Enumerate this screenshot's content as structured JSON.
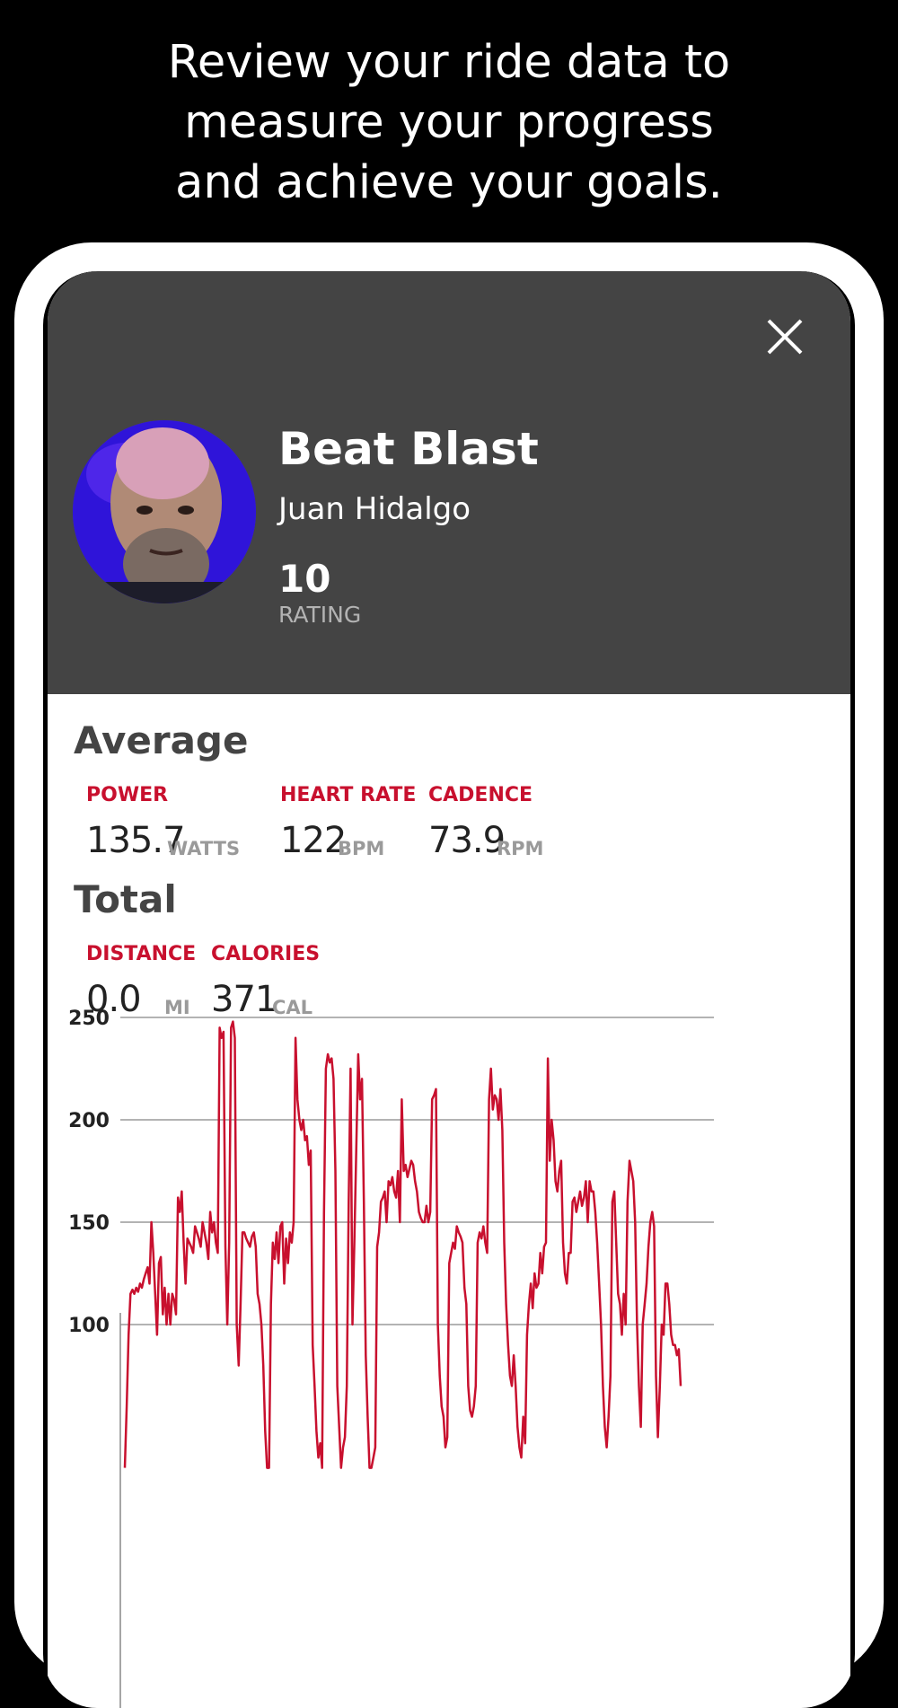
{
  "headline": {
    "lines": [
      "Review your ride data to",
      "measure your progress",
      "and achieve your goals."
    ]
  },
  "header": {
    "close_icon": "close-icon",
    "ride_title": "Beat Blast",
    "instructor": "Juan Hidalgo",
    "rating_value": "10",
    "rating_label": "RATING"
  },
  "average": {
    "title": "Average",
    "power_label": "POWER",
    "power_value": "135.7",
    "power_unit": "WATTS",
    "heart_rate_label": "HEART RATE",
    "heart_rate_value": "122",
    "heart_rate_unit": "BPM",
    "cadence_label": "CADENCE",
    "cadence_value": "73.9",
    "cadence_unit": "RPM"
  },
  "total": {
    "title": "Total",
    "distance_label": "DISTANCE",
    "distance_value": "0.0",
    "distance_unit": "MI",
    "calories_label": "CALORIES",
    "calories_value": "371",
    "calories_unit": "CAL"
  },
  "colors": {
    "accent": "#c8102e",
    "header_bg": "#444444",
    "gridline": "#9a9a9a"
  },
  "chart_data": {
    "type": "line",
    "title": "",
    "xlabel": "",
    "ylabel": "",
    "y_ticks": [
      100,
      150,
      200,
      250
    ],
    "y_tick_labels": [
      "100",
      "150",
      "200",
      "250"
    ],
    "ylim": [
      48,
      300
    ],
    "grid": true,
    "series": [
      {
        "values": [
          30,
          60,
          95,
          115,
          117,
          115,
          118,
          116,
          120,
          118,
          122,
          125,
          128,
          120,
          150,
          135,
          115,
          95,
          130,
          133,
          105,
          118,
          100,
          115,
          100,
          115,
          112,
          105,
          162,
          155,
          165,
          140,
          120,
          142,
          140,
          138,
          135,
          148,
          145,
          142,
          138,
          150,
          145,
          140,
          132,
          155,
          145,
          150,
          140,
          135,
          245,
          240,
          243,
          138,
          100,
          140,
          245,
          248,
          240,
          100,
          80,
          110,
          145,
          145,
          142,
          140,
          138,
          143,
          145,
          138,
          115,
          110,
          100,
          80,
          48,
          30,
          30,
          110,
          140,
          132,
          145,
          130,
          148,
          150,
          120,
          142,
          130,
          145,
          140,
          150,
          240,
          210,
          200,
          195,
          200,
          190,
          192,
          178,
          185,
          90,
          70,
          48,
          35,
          42,
          30,
          155,
          225,
          232,
          228,
          230,
          220,
          175,
          70,
          50,
          30,
          40,
          45,
          70,
          160,
          225,
          100,
          140,
          185,
          232,
          210,
          220,
          160,
          85,
          55,
          30,
          30,
          35,
          40,
          138,
          145,
          160,
          162,
          165,
          150,
          170,
          168,
          172,
          165,
          162,
          175,
          150,
          210,
          175,
          178,
          172,
          176,
          180,
          178,
          170,
          165,
          155,
          152,
          150,
          150,
          158,
          150,
          155,
          210,
          212,
          215,
          100,
          75,
          60,
          55,
          40,
          45,
          130,
          135,
          140,
          137,
          148,
          145,
          143,
          140,
          118,
          110,
          70,
          58,
          55,
          60,
          70,
          140,
          145,
          142,
          148,
          140,
          135,
          210,
          225,
          205,
          212,
          210,
          200,
          215,
          195,
          140,
          110,
          90,
          75,
          70,
          85,
          70,
          50,
          40,
          35,
          55,
          42,
          95,
          110,
          120,
          108,
          125,
          118,
          120,
          135,
          125,
          138,
          140,
          230,
          180,
          200,
          190,
          170,
          165,
          175,
          180,
          140,
          125,
          120,
          135,
          135,
          160,
          162,
          155,
          160,
          165,
          158,
          162,
          170,
          150,
          170,
          165,
          165,
          155,
          140,
          120,
          100,
          70,
          50,
          40,
          55,
          75,
          160,
          165,
          140,
          115,
          110,
          95,
          115,
          100,
          160,
          180,
          175,
          170,
          150,
          100,
          70,
          50,
          100,
          110,
          120,
          138,
          150,
          155,
          148,
          75,
          45,
          70,
          100,
          95,
          120,
          120,
          110,
          95,
          90,
          90,
          85,
          88,
          70
        ]
      }
    ]
  }
}
